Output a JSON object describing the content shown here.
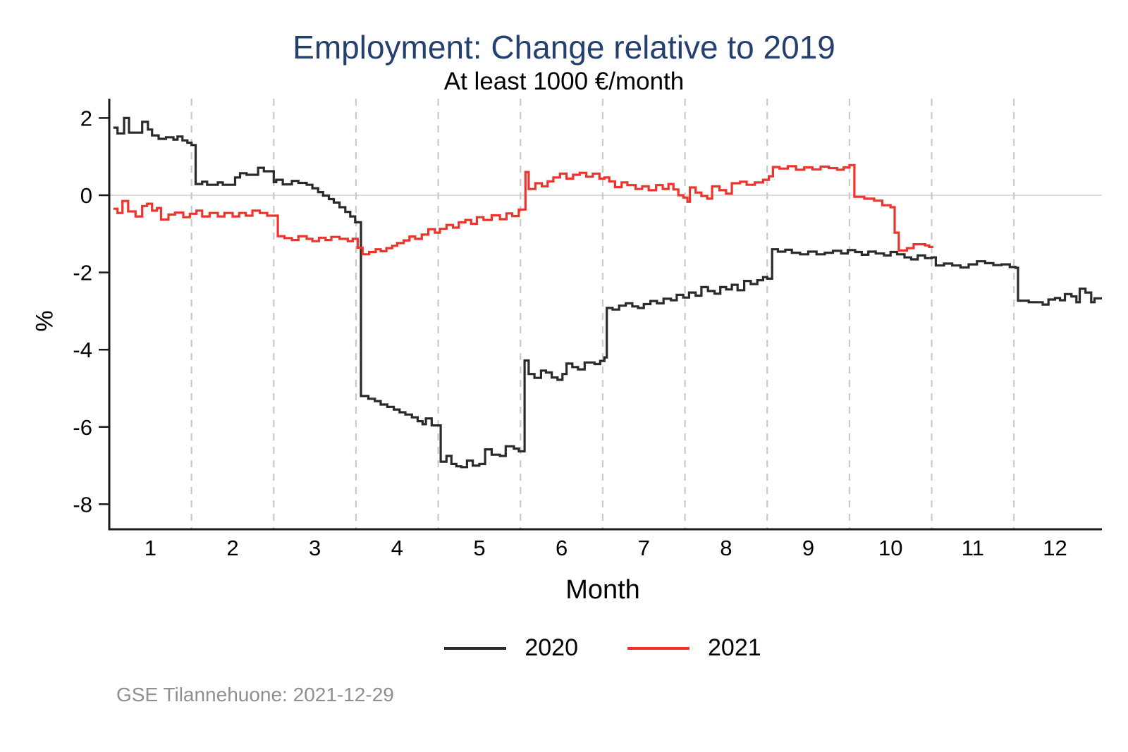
{
  "header": {
    "title": "Employment: Change relative to 2019",
    "subtitle": "At least 1000 €/month",
    "title_color": "#24406e"
  },
  "axes": {
    "y_label": "%",
    "x_label": "Month"
  },
  "legend": [
    {
      "label": "2020",
      "color": "#2a2a2a"
    },
    {
      "label": "2021",
      "color": "#ee322c"
    }
  ],
  "footer": {
    "note": "GSE Tilannehuone: 2021-12-29"
  },
  "chart_data": {
    "type": "line",
    "step": "step-after",
    "title": "Employment: Change relative to 2019",
    "subtitle": "At least 1000 €/month",
    "xlabel": "Month",
    "ylabel": "%",
    "xlim": [
      0.5,
      12.57
    ],
    "ylim": [
      -8.65,
      2.5
    ],
    "x_ticks": [
      1,
      2,
      3,
      4,
      5,
      6,
      7,
      8,
      9,
      10,
      11,
      12
    ],
    "y_ticks": [
      2,
      0,
      -2,
      -4,
      -6,
      -8
    ],
    "x_gridlines": [
      1.5,
      2.5,
      3.5,
      4.5,
      5.5,
      6.5,
      7.5,
      8.5,
      9.5,
      10.5,
      11.5
    ],
    "grid": "vertical-dashed",
    "zero_line": true,
    "legend_position": "bottom",
    "colors": {
      "gridline": "#c9c9c9",
      "zero_line": "#dcdcdc",
      "axis": "#1a1a1a",
      "tick_label": "#000000"
    },
    "series": [
      {
        "name": "2020",
        "color": "#2a2a2a",
        "points": [
          [
            0.55,
            1.75
          ],
          [
            0.6,
            1.6
          ],
          [
            0.68,
            2.0
          ],
          [
            0.74,
            1.62
          ],
          [
            0.9,
            1.9
          ],
          [
            0.97,
            1.7
          ],
          [
            1.02,
            1.55
          ],
          [
            1.1,
            1.46
          ],
          [
            1.19,
            1.5
          ],
          [
            1.28,
            1.44
          ],
          [
            1.33,
            1.52
          ],
          [
            1.39,
            1.42
          ],
          [
            1.45,
            1.36
          ],
          [
            1.5,
            1.3
          ],
          [
            1.55,
            0.29
          ],
          [
            1.63,
            0.35
          ],
          [
            1.69,
            0.27
          ],
          [
            1.82,
            0.33
          ],
          [
            1.88,
            0.27
          ],
          [
            2.03,
            0.46
          ],
          [
            2.09,
            0.57
          ],
          [
            2.17,
            0.53
          ],
          [
            2.31,
            0.71
          ],
          [
            2.38,
            0.62
          ],
          [
            2.5,
            0.34
          ],
          [
            2.53,
            0.4
          ],
          [
            2.61,
            0.28
          ],
          [
            2.72,
            0.37
          ],
          [
            2.8,
            0.32
          ],
          [
            2.9,
            0.27
          ],
          [
            2.97,
            0.18
          ],
          [
            3.04,
            0.08
          ],
          [
            3.1,
            -0.01
          ],
          [
            3.17,
            -0.1
          ],
          [
            3.23,
            -0.19
          ],
          [
            3.3,
            -0.31
          ],
          [
            3.37,
            -0.43
          ],
          [
            3.43,
            -0.55
          ],
          [
            3.49,
            -0.7
          ],
          [
            3.56,
            -5.2
          ],
          [
            3.65,
            -5.27
          ],
          [
            3.73,
            -5.33
          ],
          [
            3.8,
            -5.42
          ],
          [
            3.88,
            -5.48
          ],
          [
            3.96,
            -5.55
          ],
          [
            4.03,
            -5.62
          ],
          [
            4.1,
            -5.68
          ],
          [
            4.18,
            -5.75
          ],
          [
            4.25,
            -5.85
          ],
          [
            4.31,
            -5.93
          ],
          [
            4.35,
            -5.78
          ],
          [
            4.42,
            -5.96
          ],
          [
            4.53,
            -6.9
          ],
          [
            4.6,
            -6.75
          ],
          [
            4.66,
            -6.96
          ],
          [
            4.72,
            -7.02
          ],
          [
            4.78,
            -7.04
          ],
          [
            4.85,
            -6.87
          ],
          [
            4.92,
            -7.0
          ],
          [
            5.0,
            -6.96
          ],
          [
            5.07,
            -6.58
          ],
          [
            5.15,
            -6.72
          ],
          [
            5.25,
            -6.75
          ],
          [
            5.32,
            -6.5
          ],
          [
            5.42,
            -6.56
          ],
          [
            5.48,
            -6.63
          ],
          [
            5.55,
            -4.28
          ],
          [
            5.6,
            -4.63
          ],
          [
            5.67,
            -4.73
          ],
          [
            5.75,
            -4.54
          ],
          [
            5.81,
            -4.59
          ],
          [
            5.88,
            -4.72
          ],
          [
            5.95,
            -4.78
          ],
          [
            6.01,
            -4.63
          ],
          [
            6.06,
            -4.36
          ],
          [
            6.13,
            -4.45
          ],
          [
            6.2,
            -4.51
          ],
          [
            6.28,
            -4.33
          ],
          [
            6.4,
            -4.37
          ],
          [
            6.47,
            -4.29
          ],
          [
            6.52,
            -4.2
          ],
          [
            6.55,
            -2.92
          ],
          [
            6.62,
            -2.96
          ],
          [
            6.7,
            -2.86
          ],
          [
            6.78,
            -2.8
          ],
          [
            6.86,
            -2.88
          ],
          [
            6.93,
            -2.92
          ],
          [
            7.0,
            -2.82
          ],
          [
            7.08,
            -2.74
          ],
          [
            7.16,
            -2.8
          ],
          [
            7.24,
            -2.68
          ],
          [
            7.33,
            -2.72
          ],
          [
            7.4,
            -2.58
          ],
          [
            7.48,
            -2.65
          ],
          [
            7.55,
            -2.52
          ],
          [
            7.63,
            -2.6
          ],
          [
            7.7,
            -2.38
          ],
          [
            7.78,
            -2.48
          ],
          [
            7.86,
            -2.55
          ],
          [
            7.93,
            -2.38
          ],
          [
            8.0,
            -2.44
          ],
          [
            8.07,
            -2.32
          ],
          [
            8.14,
            -2.46
          ],
          [
            8.22,
            -2.22
          ],
          [
            8.3,
            -2.3
          ],
          [
            8.38,
            -2.2
          ],
          [
            8.45,
            -2.12
          ],
          [
            8.5,
            -2.16
          ],
          [
            8.56,
            -1.4
          ],
          [
            8.63,
            -1.46
          ],
          [
            8.72,
            -1.41
          ],
          [
            8.8,
            -1.49
          ],
          [
            8.9,
            -1.53
          ],
          [
            9.0,
            -1.46
          ],
          [
            9.1,
            -1.53
          ],
          [
            9.2,
            -1.49
          ],
          [
            9.3,
            -1.44
          ],
          [
            9.4,
            -1.51
          ],
          [
            9.48,
            -1.42
          ],
          [
            9.57,
            -1.47
          ],
          [
            9.65,
            -1.54
          ],
          [
            9.73,
            -1.46
          ],
          [
            9.82,
            -1.51
          ],
          [
            9.92,
            -1.56
          ],
          [
            10.0,
            -1.47
          ],
          [
            10.08,
            -1.53
          ],
          [
            10.17,
            -1.61
          ],
          [
            10.25,
            -1.66
          ],
          [
            10.33,
            -1.56
          ],
          [
            10.42,
            -1.63
          ],
          [
            10.5,
            -1.61
          ],
          [
            10.55,
            -1.82
          ],
          [
            10.65,
            -1.77
          ],
          [
            10.75,
            -1.82
          ],
          [
            10.85,
            -1.87
          ],
          [
            10.95,
            -1.79
          ],
          [
            11.05,
            -1.71
          ],
          [
            11.15,
            -1.76
          ],
          [
            11.25,
            -1.81
          ],
          [
            11.35,
            -1.79
          ],
          [
            11.45,
            -1.86
          ],
          [
            11.52,
            -1.88
          ],
          [
            11.55,
            -2.73
          ],
          [
            11.68,
            -2.77
          ],
          [
            11.85,
            -2.83
          ],
          [
            11.92,
            -2.7
          ],
          [
            12.0,
            -2.66
          ],
          [
            12.06,
            -2.72
          ],
          [
            12.12,
            -2.56
          ],
          [
            12.2,
            -2.62
          ],
          [
            12.26,
            -2.77
          ],
          [
            12.3,
            -2.42
          ],
          [
            12.37,
            -2.52
          ],
          [
            12.44,
            -2.77
          ],
          [
            12.48,
            -2.67
          ],
          [
            12.57,
            -2.67
          ]
        ]
      },
      {
        "name": "2021",
        "color": "#ee322c",
        "points": [
          [
            0.55,
            -0.35
          ],
          [
            0.6,
            -0.46
          ],
          [
            0.66,
            -0.15
          ],
          [
            0.73,
            -0.42
          ],
          [
            0.82,
            -0.55
          ],
          [
            0.9,
            -0.28
          ],
          [
            0.96,
            -0.22
          ],
          [
            1.02,
            -0.4
          ],
          [
            1.08,
            -0.33
          ],
          [
            1.13,
            -0.63
          ],
          [
            1.22,
            -0.5
          ],
          [
            1.3,
            -0.45
          ],
          [
            1.4,
            -0.57
          ],
          [
            1.48,
            -0.48
          ],
          [
            1.56,
            -0.4
          ],
          [
            1.63,
            -0.55
          ],
          [
            1.72,
            -0.46
          ],
          [
            1.82,
            -0.55
          ],
          [
            1.9,
            -0.46
          ],
          [
            2.0,
            -0.55
          ],
          [
            2.08,
            -0.46
          ],
          [
            2.16,
            -0.53
          ],
          [
            2.24,
            -0.4
          ],
          [
            2.33,
            -0.46
          ],
          [
            2.42,
            -0.53
          ],
          [
            2.55,
            -1.06
          ],
          [
            2.63,
            -1.11
          ],
          [
            2.72,
            -1.16
          ],
          [
            2.8,
            -1.06
          ],
          [
            2.9,
            -1.13
          ],
          [
            2.97,
            -1.19
          ],
          [
            3.05,
            -1.1
          ],
          [
            3.13,
            -1.16
          ],
          [
            3.2,
            -1.08
          ],
          [
            3.3,
            -1.13
          ],
          [
            3.4,
            -1.19
          ],
          [
            3.46,
            -1.13
          ],
          [
            3.52,
            -1.36
          ],
          [
            3.58,
            -1.53
          ],
          [
            3.66,
            -1.47
          ],
          [
            3.74,
            -1.4
          ],
          [
            3.8,
            -1.45
          ],
          [
            3.87,
            -1.37
          ],
          [
            3.94,
            -1.31
          ],
          [
            4.0,
            -1.24
          ],
          [
            4.08,
            -1.17
          ],
          [
            4.15,
            -1.07
          ],
          [
            4.22,
            -1.13
          ],
          [
            4.3,
            -1.02
          ],
          [
            4.38,
            -0.88
          ],
          [
            4.46,
            -0.97
          ],
          [
            4.52,
            -0.87
          ],
          [
            4.6,
            -0.77
          ],
          [
            4.68,
            -0.84
          ],
          [
            4.75,
            -0.7
          ],
          [
            4.83,
            -0.64
          ],
          [
            4.9,
            -0.74
          ],
          [
            4.97,
            -0.57
          ],
          [
            5.05,
            -0.64
          ],
          [
            5.15,
            -0.52
          ],
          [
            5.25,
            -0.62
          ],
          [
            5.33,
            -0.47
          ],
          [
            5.4,
            -0.54
          ],
          [
            5.48,
            -0.37
          ],
          [
            5.56,
            0.6
          ],
          [
            5.6,
            0.16
          ],
          [
            5.68,
            0.31
          ],
          [
            5.76,
            0.23
          ],
          [
            5.83,
            0.36
          ],
          [
            5.9,
            0.46
          ],
          [
            5.98,
            0.56
          ],
          [
            6.06,
            0.43
          ],
          [
            6.14,
            0.53
          ],
          [
            6.22,
            0.58
          ],
          [
            6.3,
            0.48
          ],
          [
            6.38,
            0.56
          ],
          [
            6.46,
            0.43
          ],
          [
            6.52,
            0.46
          ],
          [
            6.58,
            0.36
          ],
          [
            6.65,
            0.21
          ],
          [
            6.73,
            0.33
          ],
          [
            6.8,
            0.26
          ],
          [
            6.9,
            0.16
          ],
          [
            6.98,
            0.23
          ],
          [
            7.06,
            0.13
          ],
          [
            7.15,
            0.26
          ],
          [
            7.23,
            0.16
          ],
          [
            7.3,
            0.29
          ],
          [
            7.36,
            0.15
          ],
          [
            7.42,
            0.0
          ],
          [
            7.48,
            -0.06
          ],
          [
            7.53,
            -0.17
          ],
          [
            7.56,
            0.2
          ],
          [
            7.63,
            0.07
          ],
          [
            7.7,
            -0.02
          ],
          [
            7.77,
            -0.09
          ],
          [
            7.83,
            0.23
          ],
          [
            7.92,
            0.13
          ],
          [
            8.0,
            0.04
          ],
          [
            8.07,
            0.31
          ],
          [
            8.17,
            0.35
          ],
          [
            8.25,
            0.27
          ],
          [
            8.35,
            0.33
          ],
          [
            8.45,
            0.4
          ],
          [
            8.52,
            0.49
          ],
          [
            8.57,
            0.73
          ],
          [
            8.65,
            0.69
          ],
          [
            8.75,
            0.75
          ],
          [
            8.85,
            0.66
          ],
          [
            8.95,
            0.72
          ],
          [
            9.05,
            0.67
          ],
          [
            9.15,
            0.74
          ],
          [
            9.25,
            0.7
          ],
          [
            9.35,
            0.66
          ],
          [
            9.43,
            0.72
          ],
          [
            9.5,
            0.78
          ],
          [
            9.56,
            -0.04
          ],
          [
            9.68,
            -0.09
          ],
          [
            9.8,
            -0.14
          ],
          [
            9.9,
            -0.26
          ],
          [
            10.0,
            -0.31
          ],
          [
            10.05,
            -0.97
          ],
          [
            10.1,
            -1.43
          ],
          [
            10.2,
            -1.37
          ],
          [
            10.28,
            -1.27
          ],
          [
            10.42,
            -1.3
          ],
          [
            10.47,
            -1.34
          ],
          [
            10.52,
            -1.34
          ]
        ]
      }
    ]
  }
}
